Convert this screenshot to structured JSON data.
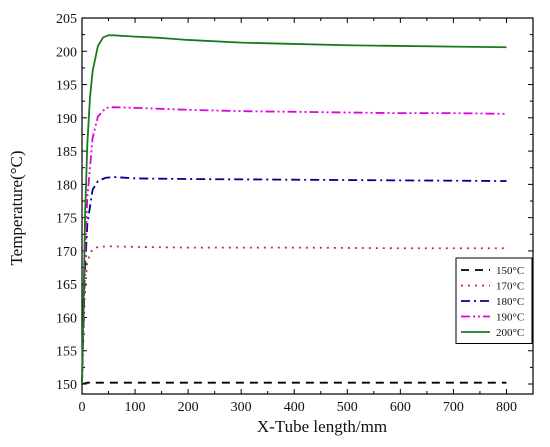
{
  "chart_data": {
    "type": "line",
    "xlabel": "X-Tube length/mm",
    "ylabel": "Temperature(°C)",
    "xlim": [
      0,
      850
    ],
    "ylim": [
      148.5,
      205
    ],
    "x_ticks": [
      0,
      100,
      200,
      300,
      400,
      500,
      600,
      700,
      800
    ],
    "y_ticks": [
      150,
      155,
      160,
      165,
      170,
      175,
      180,
      185,
      190,
      195,
      200,
      205
    ],
    "grid": false,
    "legend_position": "bottom-right",
    "series": [
      {
        "name": "150°C",
        "color": "#000000",
        "dash": "dash",
        "x": [
          0,
          10,
          800
        ],
        "y": [
          150,
          150.2,
          150.2
        ]
      },
      {
        "name": "170°C",
        "color": "#d62728",
        "dash": "dot",
        "x": [
          0,
          5,
          10,
          20,
          30,
          50,
          100,
          200,
          400,
          600,
          800
        ],
        "y": [
          150,
          163,
          168.5,
          170.3,
          170.6,
          170.7,
          170.6,
          170.5,
          170.5,
          170.4,
          170.4
        ]
      },
      {
        "name": "180°C",
        "color": "#00008b",
        "dash": "dashdot",
        "x": [
          0,
          5,
          10,
          20,
          30,
          45,
          60,
          100,
          200,
          400,
          600,
          800
        ],
        "y": [
          150,
          166,
          174,
          179.2,
          180.5,
          181,
          181.1,
          180.9,
          180.8,
          180.7,
          180.6,
          180.5
        ]
      },
      {
        "name": "190°C",
        "color": "#e000e0",
        "dash": "dashdotdot",
        "x": [
          0,
          5,
          10,
          20,
          30,
          45,
          60,
          100,
          200,
          300,
          400,
          500,
          600,
          700,
          800
        ],
        "y": [
          150,
          168,
          178,
          187,
          190.2,
          191.5,
          191.6,
          191.5,
          191.2,
          191.0,
          190.9,
          190.8,
          190.7,
          190.7,
          190.6
        ]
      },
      {
        "name": "200°C",
        "color": "#1a7a1a",
        "dash": "solid",
        "x": [
          0,
          3,
          6,
          10,
          15,
          20,
          30,
          40,
          50,
          60,
          80,
          100,
          150,
          200,
          300,
          400,
          500,
          600,
          700,
          800
        ],
        "y": [
          150,
          163,
          176,
          186,
          193,
          197,
          200.8,
          202.1,
          202.4,
          202.4,
          202.3,
          202.2,
          202.0,
          201.7,
          201.3,
          201.1,
          200.9,
          200.8,
          200.7,
          200.6
        ]
      }
    ]
  }
}
